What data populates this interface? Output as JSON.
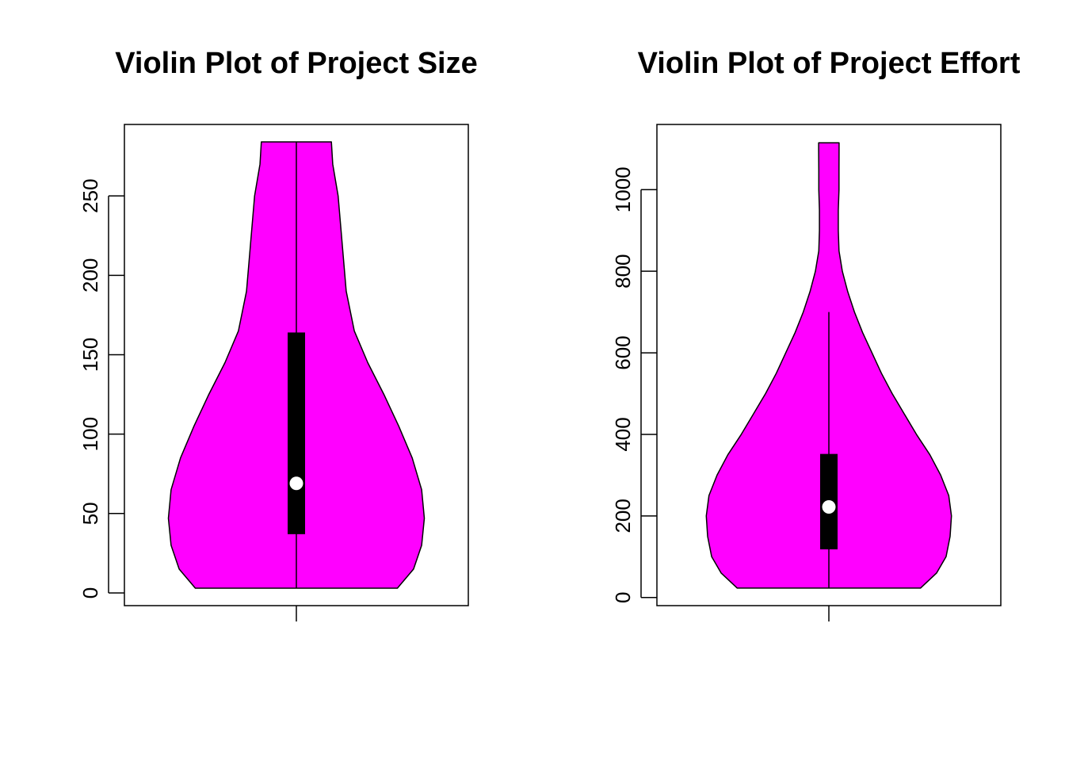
{
  "chart_data": [
    {
      "type": "violin",
      "title": "Violin Plot of Project Size",
      "xlabel": "",
      "ylabel": "",
      "ylim": [
        -8,
        295
      ],
      "yticks": [
        0,
        50,
        100,
        150,
        200,
        250
      ],
      "fill_color": "#ff00ff",
      "box_color": "#000000",
      "median_color": "#ffffff",
      "grid": false,
      "summary": {
        "min": 3,
        "q1": 37,
        "median": 69,
        "q3": 164,
        "whisker_low": 3,
        "whisker_high": 284,
        "max": 284
      },
      "density": {
        "y": [
          3,
          15,
          30,
          47,
          65,
          85,
          105,
          125,
          145,
          165,
          190,
          210,
          230,
          250,
          270,
          284
        ],
        "half_width": [
          0.75,
          0.87,
          0.93,
          0.95,
          0.93,
          0.86,
          0.76,
          0.65,
          0.53,
          0.43,
          0.37,
          0.35,
          0.33,
          0.31,
          0.27,
          0.26
        ]
      }
    },
    {
      "type": "violin",
      "title": "Violin Plot of Project Effort",
      "xlabel": "",
      "ylabel": "",
      "ylim": [
        -20,
        1160
      ],
      "yticks": [
        0,
        200,
        400,
        600,
        800,
        1000
      ],
      "fill_color": "#ff00ff",
      "box_color": "#000000",
      "median_color": "#ffffff",
      "grid": false,
      "summary": {
        "min": 23,
        "q1": 118,
        "median": 222,
        "q3": 352,
        "whisker_low": 23,
        "whisker_high": 700,
        "max": 1115
      },
      "density": {
        "y": [
          23,
          60,
          100,
          150,
          200,
          250,
          300,
          350,
          400,
          450,
          500,
          550,
          600,
          650,
          700,
          750,
          800,
          850,
          900,
          950,
          1000,
          1050,
          1100,
          1115
        ],
        "half_width": [
          0.68,
          0.8,
          0.87,
          0.9,
          0.91,
          0.89,
          0.83,
          0.75,
          0.65,
          0.56,
          0.47,
          0.39,
          0.32,
          0.25,
          0.19,
          0.14,
          0.1,
          0.075,
          0.07,
          0.07,
          0.075,
          0.075,
          0.076,
          0.076
        ]
      }
    }
  ]
}
